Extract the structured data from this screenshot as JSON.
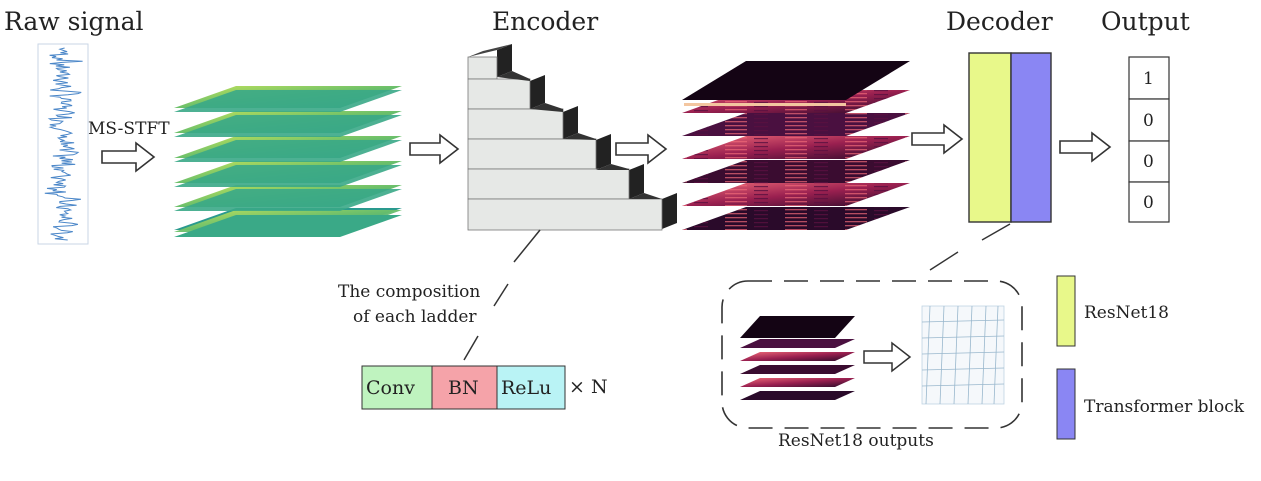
{
  "titles": {
    "raw_signal": "Raw signal",
    "encoder": "Encoder",
    "decoder": "Decoder",
    "output": "Output"
  },
  "transform_label": "MS-STFT",
  "composition_label": {
    "line1": "The composition",
    "line2": "of each ladder"
  },
  "ladder_blocks": [
    {
      "label": "Conv",
      "color": "#bff3bf"
    },
    {
      "label": "BN",
      "color": "#f5a3a9"
    },
    {
      "label": "ReLu",
      "color": "#b9f3f5"
    }
  ],
  "repeat_label": "× N",
  "output_values": [
    "1",
    "0",
    "0",
    "0"
  ],
  "legend": [
    {
      "label": "ResNet18",
      "color": "#e8f88a"
    },
    {
      "label": "Transformer block",
      "color": "#8a86f3"
    }
  ],
  "inset_caption": "ResNet18 outputs",
  "colors": {
    "signal": "#4a86c8",
    "spectrogram_green": "#6cc06a",
    "spectrogram_teal": "#2a9a8e",
    "feature_dark": "#2a0a2a",
    "feature_magenta": "#9a2050",
    "ladder_face": "#e6e8e6",
    "ladder_side": "#222222"
  }
}
